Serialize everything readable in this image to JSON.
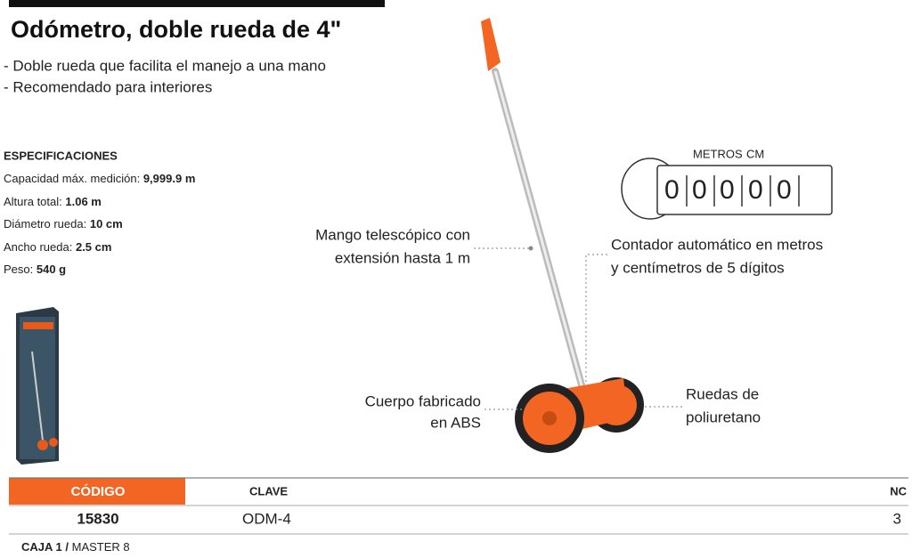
{
  "header": {
    "title": "Odómetro, doble rueda de 4\""
  },
  "features": [
    "- Doble rueda que facilita el manejo a una mano",
    "- Recomendado para interiores"
  ],
  "specs": {
    "heading": "ESPECIFICACIONES",
    "rows": [
      [
        "Capacidad máx. medición:",
        "9,999.9 m"
      ],
      [
        "Altura total:",
        "1.06 m"
      ],
      [
        "Diámetro rueda:",
        "10 cm"
      ],
      [
        "Ancho rueda:",
        "2.5 cm"
      ],
      [
        "Peso:",
        "540 g"
      ]
    ]
  },
  "callouts": {
    "handle": [
      "Mango telescópico con",
      "extensión hasta 1 m"
    ],
    "counter": [
      "Contador automático en metros",
      "y centímetros de 5 dígitos"
    ],
    "body": [
      "Cuerpo fabricado",
      "en ABS"
    ],
    "wheels": [
      "Ruedas de",
      "poliuretano"
    ]
  },
  "counter": {
    "metros": "METROS",
    "cm": "CM",
    "digits": [
      "0",
      "0",
      "0",
      "0",
      "0"
    ]
  },
  "table": {
    "headers": [
      "CÓDIGO",
      "CLAVE",
      "NC"
    ],
    "row": [
      "15830",
      "ODM-4",
      "3"
    ]
  },
  "footer": {
    "box": "CAJA 1 /",
    "master": "MASTER 8"
  }
}
